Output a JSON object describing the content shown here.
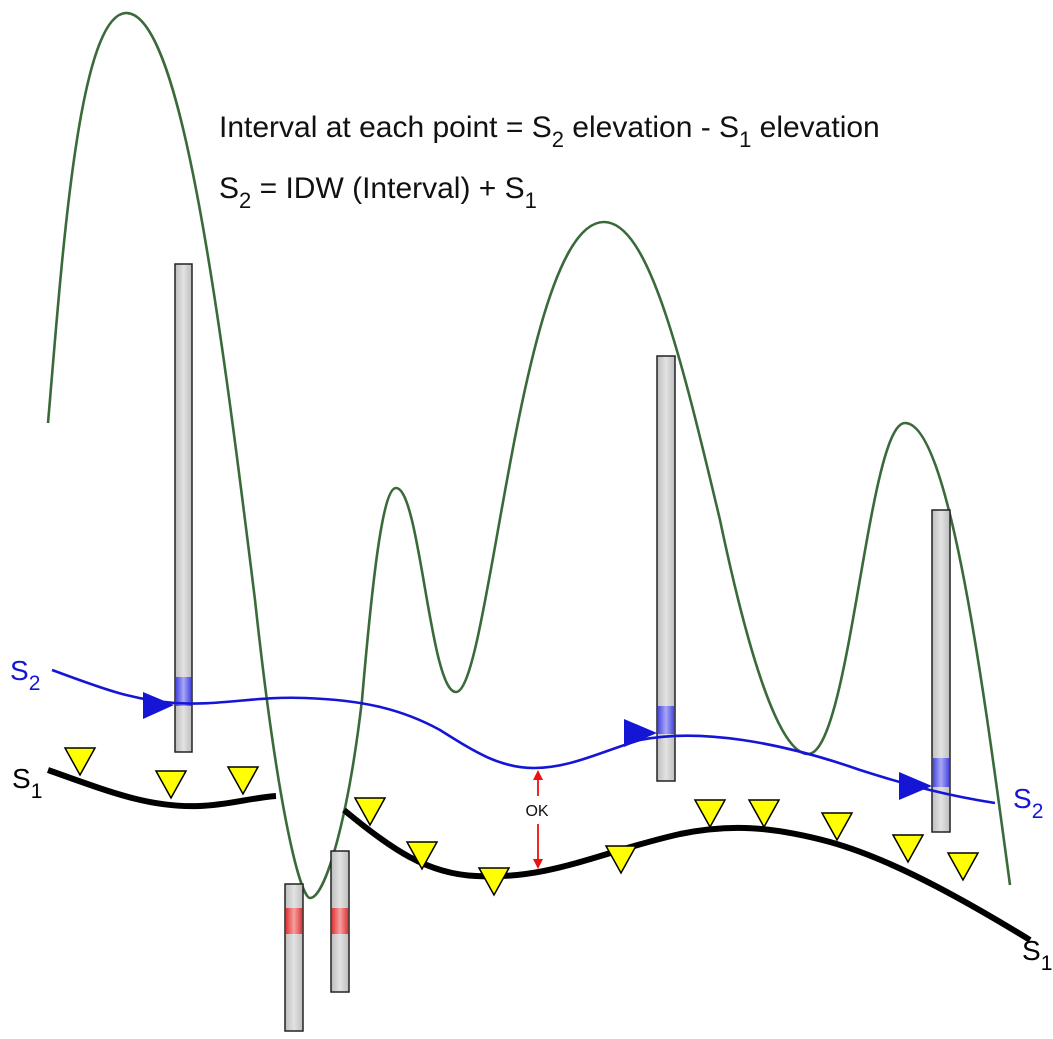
{
  "formulas": {
    "line1": {
      "part1": "Interval at each point = S",
      "sub1": "2",
      "part2": " elevation - S",
      "sub2": "1",
      "part3": " elevation"
    },
    "line2": {
      "part1": "S",
      "sub1": "2",
      "part2": " = IDW (Interval) + S",
      "sub2": "1"
    }
  },
  "surfaces": {
    "s2": {
      "base": "S",
      "sub": "2",
      "color": "#1515d6"
    },
    "s1": {
      "base": "S",
      "sub": "1",
      "color": "#000000"
    }
  },
  "annotation": {
    "ok": "OK",
    "arrow_color": "#ee1111"
  },
  "colors": {
    "terrain": "#3a6a3a",
    "well_fill": "#d4d4d4",
    "well_stroke": "#222222",
    "s2_marker": "#7070ee",
    "s1_marker": "#e04848",
    "triangle_fill": "#ffff00"
  }
}
